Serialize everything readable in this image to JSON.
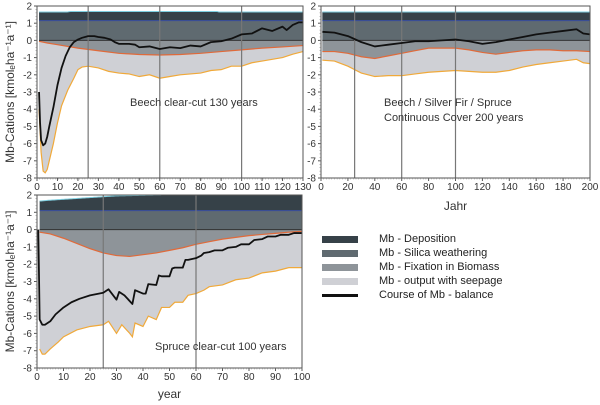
{
  "colors": {
    "deposition": "#364148",
    "silica": "#5f6a70",
    "fixation": "#8e9499",
    "seepage": "#cfd0d5",
    "balance": "#111111",
    "fixation_edge": "#e06a3a",
    "seepage_edge": "#f0a93a",
    "deposition_edge": "#7ecfe0",
    "silica_edge": "#3a4fa0"
  },
  "legend": [
    {
      "key": "deposition",
      "label": "Mb - Deposition"
    },
    {
      "key": "silica",
      "label": "Mb - Silica weathering"
    },
    {
      "key": "fixation",
      "label": "Mb - Fixation in Biomass"
    },
    {
      "key": "seepage",
      "label": "Mb - output with seepage"
    },
    {
      "key": "balance",
      "label": "Course of Mb - balance"
    }
  ],
  "chart_data": [
    {
      "type": "area",
      "id": "beech",
      "annotation": [
        "Beech clear-cut 130 years"
      ],
      "ylabel": "Mb-Cations [kmolₑha⁻¹a⁻¹]",
      "xlabel": "",
      "xlim": [
        0,
        130
      ],
      "ylim": [
        -8,
        2
      ],
      "xticks": [
        0,
        10,
        20,
        30,
        40,
        50,
        60,
        70,
        80,
        90,
        100,
        110,
        120,
        130
      ],
      "yticks": [
        2,
        1,
        0,
        -1,
        -2,
        -3,
        -4,
        -5,
        -6,
        -7,
        -8
      ],
      "vlines": [
        25,
        60,
        100
      ],
      "deposition_top": {
        "x": [
          1,
          15,
          16,
          88,
          89,
          130
        ],
        "y": [
          1.65,
          1.65,
          1.68,
          1.68,
          1.65,
          1.65
        ]
      },
      "silica_top": 1.15,
      "fixation_bottom": {
        "x": [
          1,
          5,
          10,
          20,
          30,
          40,
          50,
          60,
          70,
          80,
          90,
          100,
          110,
          120,
          130
        ],
        "y": [
          -0.05,
          -0.15,
          -0.25,
          -0.45,
          -0.6,
          -0.75,
          -0.82,
          -0.85,
          -0.82,
          -0.75,
          -0.65,
          -0.55,
          -0.45,
          -0.38,
          -0.3
        ]
      },
      "seepage_bottom": {
        "x": [
          1,
          2,
          3,
          4,
          5,
          6,
          8,
          10,
          12,
          15,
          18,
          20,
          22,
          25,
          30,
          35,
          40,
          45,
          50,
          55,
          60,
          65,
          70,
          75,
          80,
          85,
          90,
          95,
          100,
          105,
          110,
          115,
          120,
          125,
          130
        ],
        "y": [
          -4.0,
          -6.5,
          -7.6,
          -7.7,
          -7.5,
          -7.0,
          -6.0,
          -4.8,
          -3.8,
          -2.9,
          -2.2,
          -1.7,
          -1.55,
          -1.5,
          -1.6,
          -1.8,
          -1.9,
          -1.95,
          -2.1,
          -2.0,
          -2.2,
          -2.1,
          -2.0,
          -1.95,
          -1.9,
          -1.75,
          -1.7,
          -1.5,
          -1.5,
          -1.3,
          -1.2,
          -1.1,
          -1.0,
          -0.8,
          -0.65
        ]
      },
      "balance": {
        "x": [
          1,
          1.5,
          2,
          3,
          4,
          5,
          6,
          8,
          10,
          12,
          14,
          16,
          18,
          20,
          22,
          25,
          28,
          30,
          33,
          36,
          38,
          40,
          45,
          48,
          50,
          55,
          60,
          65,
          70,
          75,
          80,
          85,
          90,
          95,
          100,
          105,
          110,
          115,
          120,
          122,
          125,
          128,
          130
        ],
        "y": [
          -3.0,
          -4.8,
          -5.8,
          -6.1,
          -6.0,
          -5.6,
          -5.0,
          -3.9,
          -2.6,
          -1.6,
          -0.9,
          -0.4,
          -0.1,
          0.05,
          0.15,
          0.25,
          0.25,
          0.2,
          0.15,
          0.05,
          -0.1,
          -0.2,
          -0.2,
          -0.25,
          -0.4,
          -0.35,
          -0.5,
          -0.4,
          -0.45,
          -0.3,
          -0.35,
          -0.1,
          -0.05,
          0.1,
          0.35,
          0.4,
          0.7,
          0.55,
          0.8,
          0.6,
          0.9,
          1.05,
          1.05
        ]
      }
    },
    {
      "type": "area",
      "id": "continuous",
      "annotation": [
        "Beech / Silver Fir / Spruce",
        "Continuous Cover 200 years"
      ],
      "ylabel": "",
      "xlabel": "Jahr",
      "xlim": [
        0,
        200
      ],
      "ylim": [
        -8,
        2
      ],
      "xticks": [
        0,
        20,
        40,
        60,
        80,
        100,
        120,
        140,
        160,
        180,
        200
      ],
      "yticks": [
        2,
        1,
        0,
        -1,
        -2,
        -3,
        -4,
        -5,
        -6,
        -7,
        -8
      ],
      "vlines": [
        25,
        60,
        100
      ],
      "deposition_top": {
        "x": [
          1,
          200
        ],
        "y": [
          1.65,
          1.65
        ]
      },
      "silica_top": 1.15,
      "fixation_bottom": {
        "x": [
          1,
          10,
          20,
          30,
          40,
          50,
          60,
          70,
          80,
          90,
          100,
          110,
          120,
          130,
          140,
          150,
          160,
          170,
          180,
          190,
          200
        ],
        "y": [
          -0.65,
          -0.65,
          -0.75,
          -0.95,
          -1.05,
          -0.9,
          -0.75,
          -0.6,
          -0.45,
          -0.45,
          -0.45,
          -0.55,
          -0.7,
          -0.8,
          -0.7,
          -0.6,
          -0.55,
          -0.55,
          -0.6,
          -0.6,
          -0.65
        ]
      },
      "seepage_bottom": {
        "x": [
          1,
          10,
          20,
          30,
          40,
          50,
          60,
          70,
          80,
          90,
          100,
          110,
          120,
          130,
          140,
          150,
          160,
          170,
          180,
          190,
          195,
          200
        ],
        "y": [
          -1.15,
          -1.2,
          -1.5,
          -1.9,
          -2.1,
          -2.05,
          -2.05,
          -1.95,
          -1.85,
          -1.8,
          -1.75,
          -1.8,
          -1.85,
          -1.85,
          -1.75,
          -1.55,
          -1.4,
          -1.3,
          -1.2,
          -1.1,
          -1.3,
          -1.35
        ]
      },
      "balance": {
        "x": [
          1,
          10,
          20,
          30,
          40,
          50,
          60,
          70,
          80,
          90,
          100,
          110,
          120,
          130,
          140,
          150,
          160,
          170,
          180,
          190,
          195,
          200
        ],
        "y": [
          0.5,
          0.45,
          0.25,
          -0.1,
          -0.35,
          -0.25,
          -0.15,
          -0.05,
          -0.05,
          0.0,
          0.05,
          -0.05,
          -0.2,
          -0.1,
          0.05,
          0.2,
          0.35,
          0.45,
          0.55,
          0.65,
          0.4,
          0.35
        ]
      }
    },
    {
      "type": "area",
      "id": "spruce",
      "annotation": [
        "Spruce clear-cut 100 years"
      ],
      "ylabel": "Mb-Cations [kmolₑha⁻¹a⁻¹]",
      "xlabel": "year",
      "xlim": [
        0,
        100
      ],
      "ylim": [
        -8,
        2
      ],
      "xticks": [
        0,
        10,
        20,
        30,
        40,
        50,
        60,
        70,
        80,
        90,
        100
      ],
      "yticks": [
        2,
        1,
        0,
        -1,
        -2,
        -3,
        -4,
        -5,
        -6,
        -7,
        -8
      ],
      "vlines": [
        25,
        60
      ],
      "deposition_top": {
        "x": [
          1,
          5,
          10,
          15,
          20,
          25,
          30,
          40,
          48,
          100
        ],
        "y": [
          1.65,
          1.7,
          1.75,
          1.8,
          1.85,
          1.9,
          1.95,
          1.98,
          2.0,
          2.0
        ]
      },
      "silica_top": 1.1,
      "fixation_bottom": {
        "x": [
          1,
          5,
          10,
          15,
          20,
          25,
          30,
          35,
          40,
          45,
          50,
          55,
          60,
          65,
          70,
          75,
          80,
          85,
          90,
          95,
          100
        ],
        "y": [
          -0.15,
          -0.25,
          -0.5,
          -0.8,
          -1.1,
          -1.35,
          -1.5,
          -1.55,
          -1.45,
          -1.35,
          -1.2,
          -1.05,
          -0.85,
          -0.7,
          -0.55,
          -0.45,
          -0.35,
          -0.28,
          -0.22,
          -0.15,
          -0.1
        ]
      },
      "seepage_bottom": {
        "x": [
          1,
          2,
          3,
          5,
          8,
          10,
          15,
          20,
          25,
          27,
          30,
          32,
          35,
          36,
          37,
          40,
          42,
          45,
          47,
          50,
          52,
          55,
          57,
          60,
          63,
          65,
          70,
          75,
          80,
          85,
          90,
          95,
          100
        ],
        "y": [
          -6.9,
          -7.2,
          -7.2,
          -6.9,
          -6.5,
          -6.2,
          -5.8,
          -5.6,
          -5.5,
          -5.3,
          -6.0,
          -5.5,
          -6.0,
          -6.2,
          -5.4,
          -5.6,
          -5.0,
          -5.2,
          -4.5,
          -4.5,
          -4.2,
          -4.2,
          -3.8,
          -3.7,
          -3.5,
          -3.3,
          -3.2,
          -2.9,
          -2.8,
          -2.5,
          -2.4,
          -2.2,
          -2.2
        ]
      },
      "balance": {
        "x": [
          0.5,
          1,
          2,
          3,
          5,
          7,
          10,
          13,
          16,
          20,
          25,
          27,
          30,
          31,
          33,
          36,
          37,
          40,
          41,
          42,
          45,
          46,
          47,
          50,
          51,
          52,
          55,
          56,
          57,
          60,
          62,
          63,
          65,
          67,
          70,
          72,
          75,
          77,
          80,
          82,
          85,
          87,
          90,
          92,
          95,
          97,
          100
        ],
        "y": [
          0,
          -5.2,
          -5.5,
          -5.5,
          -5.3,
          -4.9,
          -4.5,
          -4.2,
          -4.0,
          -3.8,
          -3.65,
          -3.45,
          -4.05,
          -3.6,
          -3.8,
          -4.3,
          -3.5,
          -3.7,
          -3.7,
          -3.15,
          -3.2,
          -2.65,
          -2.7,
          -2.7,
          -2.25,
          -2.2,
          -2.2,
          -1.75,
          -1.75,
          -1.65,
          -1.5,
          -1.35,
          -1.3,
          -1.2,
          -1.2,
          -1.05,
          -1.0,
          -0.85,
          -0.85,
          -0.6,
          -0.55,
          -0.4,
          -0.4,
          -0.3,
          -0.3,
          -0.2,
          -0.2
        ]
      }
    }
  ]
}
